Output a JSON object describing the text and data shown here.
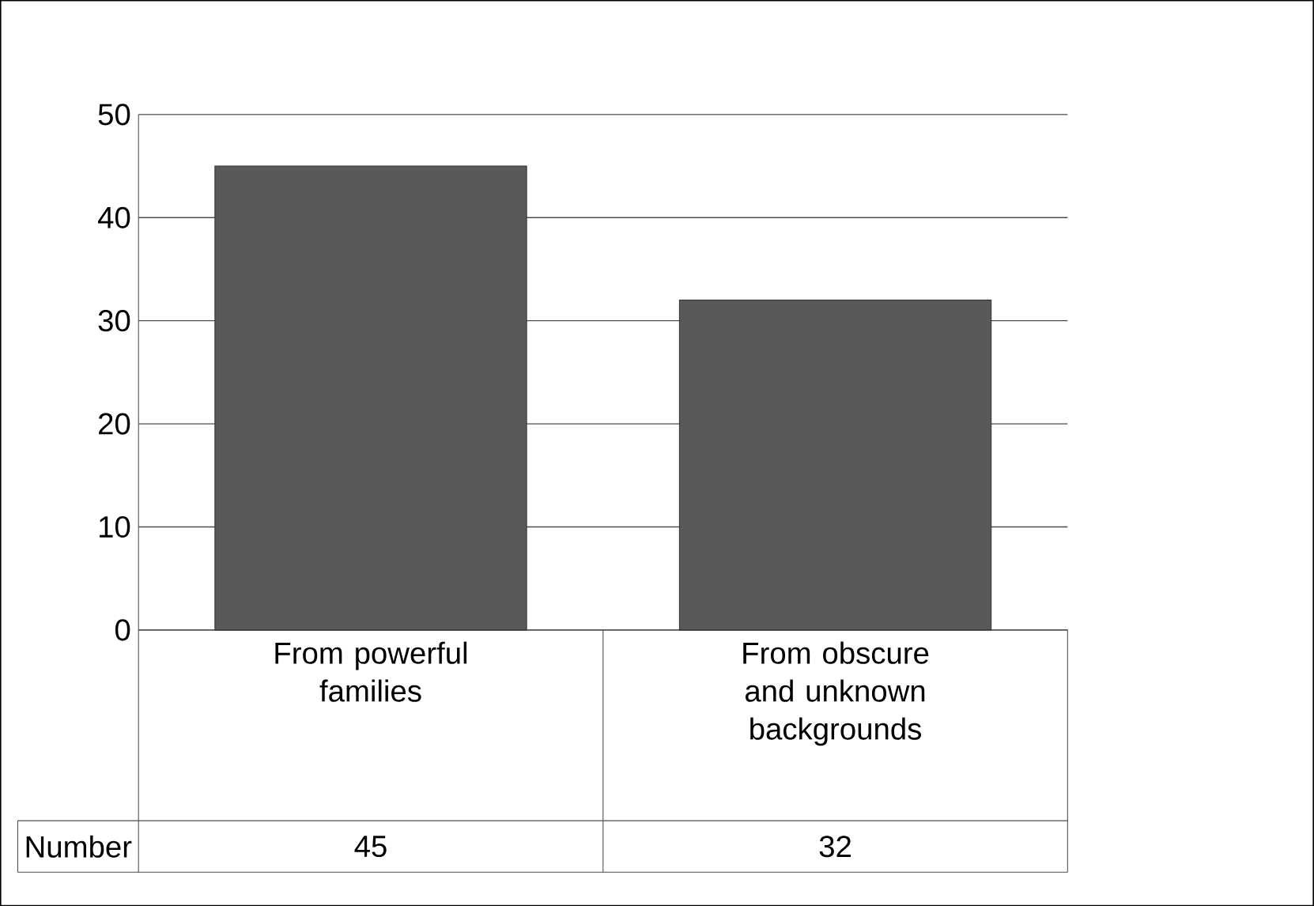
{
  "chart_data": {
    "type": "bar",
    "categories": [
      "From powerful families",
      "From obscure and unknown backgrounds"
    ],
    "series": [
      {
        "name": "Number",
        "color": "#595959",
        "values": [
          45,
          32
        ]
      }
    ],
    "ylim": [
      0,
      50
    ],
    "yticks": [
      0,
      10,
      20,
      30,
      40,
      50
    ],
    "grid": "y",
    "data_labels": true
  }
}
